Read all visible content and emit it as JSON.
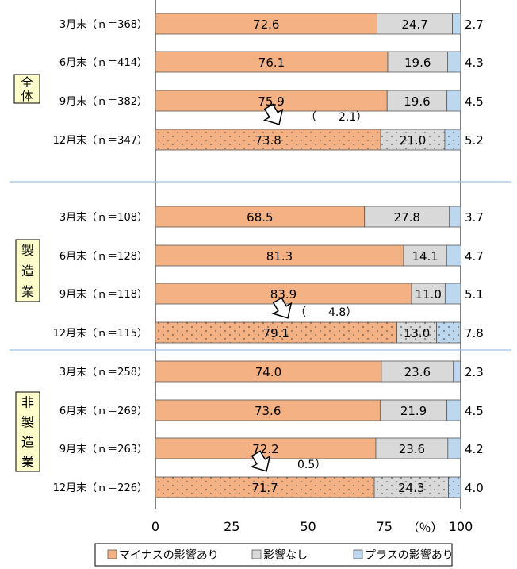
{
  "chart_data": {
    "type": "bar",
    "orientation": "horizontal",
    "stacked": true,
    "xlim": [
      0,
      100
    ],
    "x_ticks": [
      "0",
      "25",
      "50",
      "75",
      "100"
    ],
    "unit_label": "（％）",
    "legend_position": "bottom",
    "series": [
      {
        "name": "マイナスの影響あり",
        "color": "#f4b183"
      },
      {
        "name": "影響なし",
        "color": "#d9d9d9"
      },
      {
        "name": "プラスの影響あり",
        "color": "#bdd7ee"
      }
    ],
    "groups": [
      {
        "label": "全体",
        "rows": [
          {
            "label": "3月末（ｎ＝368）",
            "values": [
              72.6,
              24.7,
              2.7
            ],
            "value_labels": [
              "72.6",
              "24.7",
              "2.7"
            ],
            "dotted": false
          },
          {
            "label": "6月末（ｎ＝414）",
            "values": [
              76.1,
              19.6,
              4.3
            ],
            "value_labels": [
              "76.1",
              "19.6",
              "4.3"
            ],
            "dotted": false
          },
          {
            "label": "9月末（ｎ＝382）",
            "values": [
              75.9,
              19.6,
              4.5
            ],
            "value_labels": [
              "75.9",
              "19.6",
              "4.5"
            ],
            "dotted": false
          },
          {
            "label": "12月末（ｎ＝347）",
            "values": [
              73.8,
              21.0,
              5.2
            ],
            "value_labels": [
              "73.8",
              "21.0",
              "5.2"
            ],
            "dotted": true
          }
        ],
        "change_annotation": "（　　2.1）"
      },
      {
        "label": "製造業",
        "rows": [
          {
            "label": "3月末（ｎ＝108）",
            "values": [
              68.5,
              27.8,
              3.7
            ],
            "value_labels": [
              "68.5",
              "27.8",
              "3.7"
            ],
            "dotted": false
          },
          {
            "label": "6月末（ｎ＝128）",
            "values": [
              81.3,
              14.1,
              4.7
            ],
            "value_labels": [
              "81.3",
              "14.1",
              "4.7"
            ],
            "dotted": false
          },
          {
            "label": "9月末（ｎ＝118）",
            "values": [
              83.9,
              11.0,
              5.1
            ],
            "value_labels": [
              "83.9",
              "11.0",
              "5.1"
            ],
            "dotted": false
          },
          {
            "label": "12月末（ｎ＝115）",
            "values": [
              79.1,
              13.0,
              7.8
            ],
            "value_labels": [
              "79.1",
              "13.0",
              "7.8"
            ],
            "dotted": true
          }
        ],
        "change_annotation": "（　　4.8）"
      },
      {
        "label": "非製造業",
        "rows": [
          {
            "label": "3月末（ｎ＝258）",
            "values": [
              74.0,
              23.6,
              2.3
            ],
            "value_labels": [
              "74.0",
              "23.6",
              "2.3"
            ],
            "dotted": false
          },
          {
            "label": "6月末（ｎ＝269）",
            "values": [
              73.6,
              21.9,
              4.5
            ],
            "value_labels": [
              "73.6",
              "21.9",
              "4.5"
            ],
            "dotted": false
          },
          {
            "label": "9月末（ｎ＝263）",
            "values": [
              72.2,
              23.6,
              4.2
            ],
            "value_labels": [
              "72.2",
              "23.6",
              "4.2"
            ],
            "dotted": false
          },
          {
            "label": "12月末（ｎ＝226）",
            "values": [
              71.7,
              24.3,
              4.0
            ],
            "value_labels": [
              "71.7",
              "24.3",
              "4.0"
            ],
            "dotted": true
          }
        ],
        "change_annotation": "0.5）"
      }
    ]
  }
}
